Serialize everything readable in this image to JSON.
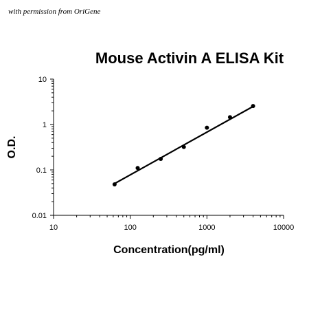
{
  "credit": "with permission from OriGene",
  "chart_data": {
    "type": "scatter",
    "title": "Mouse Activin A ELISA Kit",
    "xlabel": "Concentration(pg/ml)",
    "ylabel": "O.D.",
    "x_scale": "log",
    "y_scale": "log",
    "xlim": [
      10,
      10000
    ],
    "ylim": [
      0.01,
      10
    ],
    "x_ticks": [
      {
        "value": 10,
        "label": "10"
      },
      {
        "value": 100,
        "label": "100"
      },
      {
        "value": 1000,
        "label": "1000"
      },
      {
        "value": 10000,
        "label": "10000"
      }
    ],
    "y_ticks": [
      {
        "value": 10,
        "label": "10"
      },
      {
        "value": 1,
        "label": "1"
      },
      {
        "value": 0.1,
        "label": "0.1"
      },
      {
        "value": 0.01,
        "label": "0.01"
      }
    ],
    "grid": false,
    "legend": "none",
    "point_color": "#000000",
    "line_color": "#000000",
    "series": [
      {
        "x": [
          62.5,
          125,
          250,
          500,
          1000,
          2000,
          4000
        ],
        "y": [
          0.048,
          0.11,
          0.175,
          0.32,
          0.85,
          1.45,
          2.55
        ]
      }
    ],
    "fit_line": {
      "x": [
        62.5,
        4000
      ],
      "y": [
        0.05,
        2.5
      ]
    }
  }
}
